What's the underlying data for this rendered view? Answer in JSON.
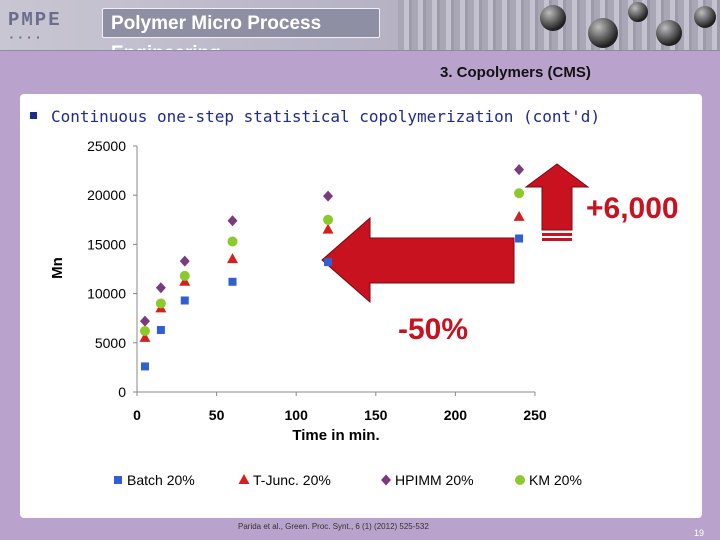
{
  "header": {
    "logo_text": "PMPE",
    "title": "Polymer Micro Process Engineering"
  },
  "section_title": "3. Copolymers (CMS)",
  "subtitle": "Continuous one-step statistical copolymerization (cont'd)",
  "citation": "Parida et al., Green. Proc. Synt., 6 (1) (2012) 525-532",
  "page_number": "19",
  "colors": {
    "batch": "#2f5fd0",
    "tjunc": "#d62020",
    "hpimm": "#7c3a7e",
    "km": "#8ec92c",
    "arrow": "#c8121f"
  },
  "chart_data": {
    "type": "scatter",
    "xlabel": "Time in min.",
    "ylabel": "Mn",
    "xlim": [
      0,
      250
    ],
    "ylim": [
      0,
      25000
    ],
    "x_ticks": [
      "0",
      "50",
      "100",
      "150",
      "200",
      "250"
    ],
    "y_ticks": [
      "0",
      "5000",
      "10000",
      "15000",
      "20000",
      "25000"
    ],
    "series": [
      {
        "name": "Batch 20%",
        "marker": "square",
        "x": [
          5,
          15,
          30,
          60,
          120,
          240
        ],
        "y": [
          2600,
          6300,
          9300,
          11200,
          13200,
          15600
        ]
      },
      {
        "name": "T-Junc. 20%",
        "marker": "triangle",
        "x": [
          5,
          15,
          30,
          60,
          120,
          240
        ],
        "y": [
          5500,
          8500,
          11200,
          13500,
          16500,
          17800
        ]
      },
      {
        "name": "HPIMM 20%",
        "marker": "diamond",
        "x": [
          5,
          15,
          30,
          60,
          120,
          240
        ],
        "y": [
          7200,
          10600,
          13300,
          17400,
          19900,
          22600
        ]
      },
      {
        "name": "KM 20%",
        "marker": "circle",
        "x": [
          5,
          15,
          30,
          60,
          120,
          240
        ],
        "y": [
          6200,
          9000,
          11800,
          15300,
          17500,
          20200
        ]
      }
    ],
    "annotations": [
      {
        "text": "+6,000"
      },
      {
        "text": "-50%"
      }
    ]
  }
}
